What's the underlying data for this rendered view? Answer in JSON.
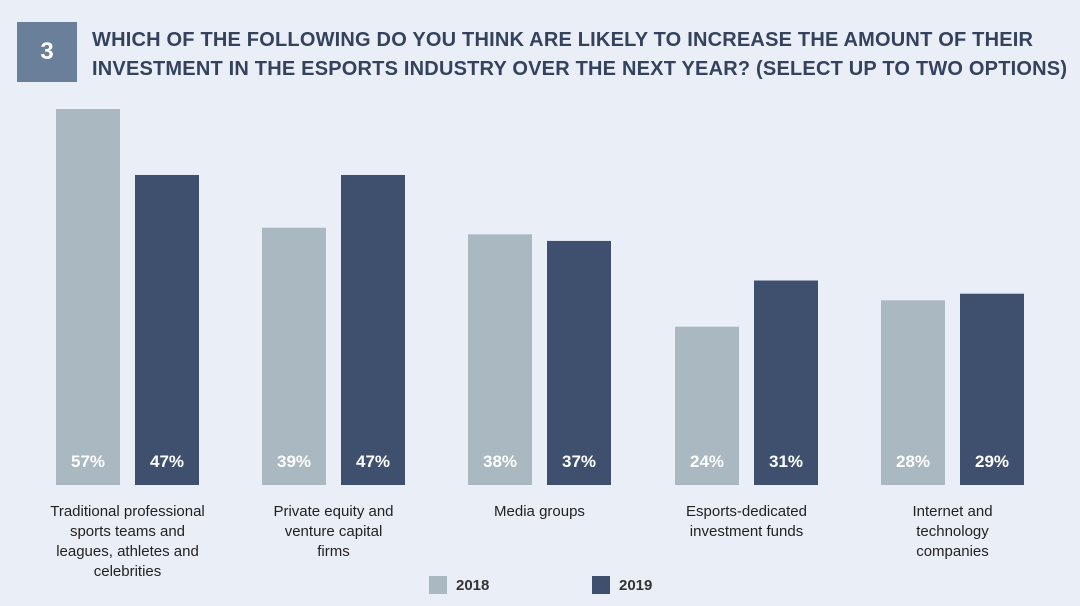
{
  "header": {
    "number": "3",
    "title_line1": "WHICH OF THE FOLLOWING DO YOU THINK ARE LIKELY TO INCREASE THE AMOUNT OF THEIR",
    "title_line2": "INVESTMENT IN THE ESPORTS INDUSTRY OVER THE NEXT YEAR? (SELECT UP TO TWO OPTIONS)"
  },
  "colors": {
    "background": "#eaeef7",
    "badge": "#6a7f99",
    "title": "#34425e",
    "series_2018": "#aab8c1",
    "series_2019": "#3f506f"
  },
  "chart_data": {
    "type": "bar",
    "title": "WHICH OF THE FOLLOWING DO YOU THINK ARE LIKELY TO INCREASE THE AMOUNT OF THEIR INVESTMENT IN THE ESPORTS INDUSTRY OVER THE NEXT YEAR? (SELECT UP TO TWO OPTIONS)",
    "categories": [
      "Traditional professional sports teams and leagues, athletes and celebrities",
      "Private equity and venture capital firms",
      "Media groups",
      "Esports-dedicated investment funds",
      "Internet and technology companies"
    ],
    "category_lines": [
      [
        "Traditional professional",
        "sports teams and",
        "leagues, athletes and",
        "celebrities"
      ],
      [
        "Private equity and",
        "venture capital",
        "firms"
      ],
      [
        "Media groups"
      ],
      [
        "Esports-dedicated",
        "investment funds"
      ],
      [
        "Internet and",
        "technology",
        "companies"
      ]
    ],
    "series": [
      {
        "name": "2018",
        "values": [
          57,
          39,
          38,
          24,
          28
        ],
        "labels": [
          "57%",
          "39%",
          "38%",
          "24%",
          "28%"
        ]
      },
      {
        "name": "2019",
        "values": [
          47,
          47,
          37,
          31,
          29
        ],
        "labels": [
          "47%",
          "47%",
          "37%",
          "31%",
          "29%"
        ]
      }
    ],
    "unit": "%",
    "ylim": [
      0,
      57
    ],
    "grid": false,
    "legend_position": "bottom-center",
    "xlabel": "",
    "ylabel": ""
  },
  "legend": [
    {
      "label": "2018"
    },
    {
      "label": "2019"
    }
  ]
}
